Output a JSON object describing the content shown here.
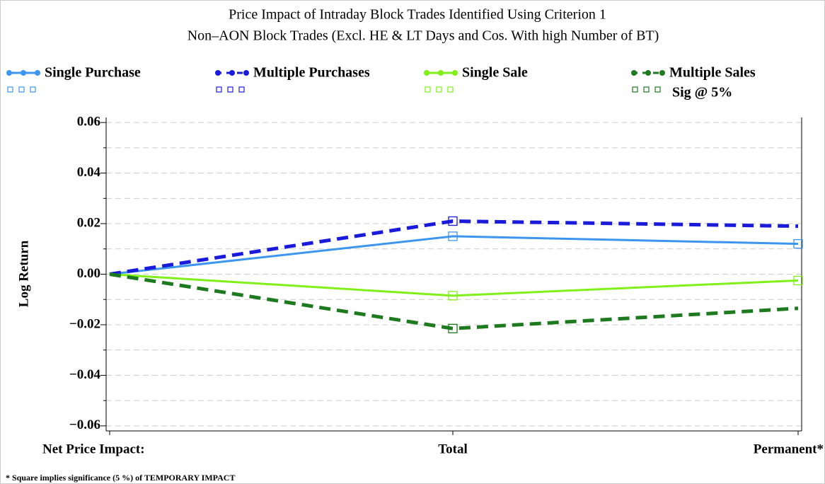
{
  "chart_data": {
    "type": "line",
    "title": "Price Impact of Intraday Block Trades Identified Using Criterion 1",
    "subtitle": "Non–AON Block Trades (Excl. HE & LT Days and Cos. With high Number of BT)",
    "y_label": "Log Return",
    "categories": [
      "Net Price Impact:",
      "Total",
      "Permanent*"
    ],
    "series": [
      {
        "name": "Single Purchase",
        "color": "#3c96f0",
        "line_style": "solid",
        "values": [
          0,
          0.015,
          0.012
        ],
        "significant": [
          false,
          true,
          true
        ]
      },
      {
        "name": "Multiple Purchases",
        "color": "#1a1adb",
        "line_style": "dashed",
        "values": [
          0,
          0.021,
          0.019
        ],
        "significant": [
          false,
          true,
          false
        ]
      },
      {
        "name": "Single Sale",
        "color": "#80f01a",
        "line_style": "solid",
        "values": [
          0,
          -0.0085,
          -0.0025
        ],
        "significant": [
          false,
          true,
          true
        ]
      },
      {
        "name": "Multiple Sales",
        "color": "#1e7a1e",
        "line_style": "dashed",
        "values": [
          0,
          -0.0215,
          -0.0135
        ],
        "significant": [
          false,
          true,
          false
        ]
      }
    ],
    "sig_label": "Sig @ 5%",
    "ylim": [
      -0.062,
      0.062
    ],
    "yticks": [
      0.06,
      0.04,
      0.02,
      {
        "value": 0,
        "label": "0.00"
      },
      {
        "value": -0.02,
        "label": "−0.02"
      },
      {
        "value": -0.04,
        "label": "−0.04"
      },
      {
        "value": -0.06,
        "label": "−0.06"
      }
    ],
    "minor_yticks": [
      0.05,
      0.03,
      0.01,
      -0.01,
      -0.03,
      -0.05
    ],
    "grid": true,
    "footnote": "* Square implies significance (5 %) of TEMPORARY IMPACT"
  }
}
